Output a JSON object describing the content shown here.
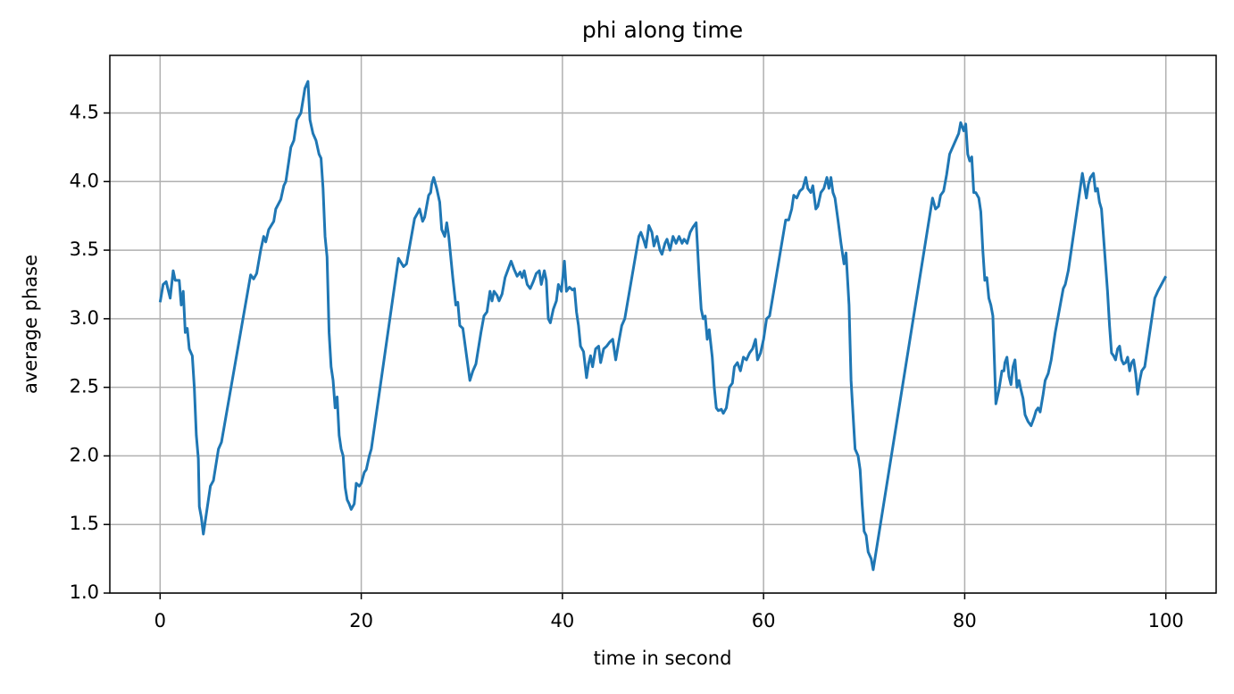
{
  "chart_data": {
    "type": "line",
    "title": "phi along time",
    "xlabel": "time in second",
    "ylabel": "average phase",
    "xlim": [
      -5,
      105
    ],
    "ylim": [
      1.0,
      4.92
    ],
    "xticks": [
      0,
      20,
      40,
      60,
      80,
      100
    ],
    "yticks": [
      {
        "value": 1.0,
        "label": "1.0"
      },
      1.5,
      {
        "value": 2.0,
        "label": "2.0"
      },
      2.5,
      {
        "value": 3.0,
        "label": "3.0"
      },
      3.5,
      {
        "value": 4.0,
        "label": "4.0"
      },
      4.5
    ],
    "grid": true,
    "x": [
      0,
      0.3,
      0.6,
      1.0,
      1.3,
      1.5,
      1.9,
      2.1,
      2.3,
      2.5,
      2.7,
      2.9,
      3.2,
      3.4,
      3.6,
      3.8,
      3.9,
      4.1,
      4.3,
      4.6,
      5.0,
      5.3,
      5.8,
      6.1,
      9.0,
      9.3,
      9.6,
      10.0,
      10.3,
      10.5,
      10.8,
      11.3,
      11.5,
      12.0,
      12.3,
      12.5,
      13.0,
      13.3,
      13.6,
      14.0,
      14.4,
      14.7,
      14.9,
      15.2,
      15.5,
      15.8,
      16.0,
      16.2,
      16.4,
      16.6,
      16.8,
      17.0,
      17.2,
      17.4,
      17.6,
      17.8,
      18.0,
      18.2,
      18.4,
      18.6,
      18.8,
      19.0,
      19.3,
      19.5,
      19.8,
      20.0,
      20.3,
      20.5,
      20.8,
      21.0,
      23.7,
      24.2,
      24.5,
      25.3,
      25.6,
      25.8,
      26.1,
      26.3,
      26.5,
      26.7,
      26.9,
      27.0,
      27.2,
      27.5,
      27.8,
      28.0,
      28.3,
      28.5,
      28.7,
      29.1,
      29.4,
      29.6,
      29.8,
      30.1,
      30.8,
      31.1,
      31.4,
      31.9,
      32.2,
      32.5,
      32.8,
      33.0,
      33.2,
      33.5,
      33.7,
      34.0,
      34.3,
      34.6,
      34.9,
      35.2,
      35.5,
      35.8,
      36.0,
      36.2,
      36.5,
      36.8,
      37.1,
      37.4,
      37.7,
      37.9,
      38.2,
      38.4,
      38.6,
      38.8,
      39.1,
      39.4,
      39.6,
      39.9,
      40.2,
      40.4,
      40.7,
      41.0,
      41.2,
      41.4,
      41.6,
      41.8,
      42.1,
      42.4,
      42.6,
      42.8,
      43.0,
      43.3,
      43.6,
      43.8,
      44.1,
      44.4,
      44.7,
      45.0,
      45.3,
      45.6,
      45.9,
      46.2,
      47.6,
      47.8,
      48.1,
      48.3,
      48.6,
      48.9,
      49.1,
      49.4,
      49.7,
      49.9,
      50.2,
      50.4,
      50.7,
      51.0,
      51.3,
      51.6,
      51.9,
      52.1,
      52.4,
      52.7,
      53.0,
      53.3,
      53.6,
      53.8,
      54.0,
      54.2,
      54.4,
      54.6,
      54.9,
      55.1,
      55.3,
      55.5,
      55.8,
      56.0,
      56.3,
      56.6,
      56.9,
      57.1,
      57.4,
      57.7,
      58.0,
      58.3,
      58.6,
      58.9,
      59.2,
      59.4,
      59.7,
      60.0,
      60.3,
      60.6,
      62.2,
      62.5,
      62.8,
      63.0,
      63.3,
      63.6,
      63.9,
      64.2,
      64.4,
      64.7,
      64.9,
      65.2,
      65.4,
      65.7,
      66.0,
      66.3,
      66.5,
      66.7,
      66.9,
      67.1,
      67.4,
      67.7,
      68.0,
      68.2,
      68.5,
      68.7,
      68.9,
      69.1,
      69.4,
      69.6,
      69.8,
      70.0,
      70.2,
      70.4,
      70.7,
      70.9,
      76.8,
      77.1,
      77.4,
      77.6,
      77.9,
      78.2,
      78.5,
      79.4,
      79.6,
      79.9,
      80.1,
      80.3,
      80.5,
      80.7,
      80.9,
      81.1,
      81.4,
      81.6,
      81.8,
      82.0,
      82.2,
      82.4,
      82.6,
      82.8,
      83.1,
      83.4,
      83.7,
      83.9,
      84.0,
      84.2,
      84.4,
      84.6,
      84.8,
      85.0,
      85.2,
      85.4,
      85.6,
      85.8,
      86.0,
      86.3,
      86.6,
      86.9,
      87.1,
      87.3,
      87.5,
      87.8,
      88.0,
      88.3,
      88.6,
      89.0,
      89.5,
      89.8,
      90.0,
      90.3,
      91.7,
      91.9,
      92.1,
      92.3,
      92.5,
      92.8,
      93.0,
      93.2,
      93.4,
      93.6,
      93.8,
      94.0,
      94.2,
      94.4,
      94.6,
      94.8,
      95.0,
      95.2,
      95.4,
      95.6,
      95.8,
      96.0,
      96.2,
      96.4,
      96.6,
      96.8,
      97.0,
      97.2,
      97.4,
      97.6,
      97.9,
      98.3,
      98.9,
      99.2,
      100
    ],
    "series": [
      {
        "color": "#1f77b4",
        "values": [
          3.12,
          3.25,
          3.27,
          3.15,
          3.35,
          3.28,
          3.28,
          3.1,
          3.2,
          2.9,
          2.93,
          2.78,
          2.73,
          2.5,
          2.15,
          1.98,
          1.63,
          1.55,
          1.43,
          1.58,
          1.78,
          1.82,
          2.05,
          2.1,
          3.32,
          3.29,
          3.33,
          3.5,
          3.6,
          3.56,
          3.65,
          3.71,
          3.8,
          3.87,
          3.97,
          4.0,
          4.25,
          4.3,
          4.45,
          4.5,
          4.68,
          4.73,
          4.45,
          4.35,
          4.3,
          4.2,
          4.17,
          3.95,
          3.6,
          3.45,
          2.9,
          2.65,
          2.55,
          2.35,
          2.43,
          2.15,
          2.05,
          2.0,
          1.77,
          1.68,
          1.65,
          1.61,
          1.65,
          1.8,
          1.78,
          1.8,
          1.88,
          1.9,
          2.0,
          2.05,
          3.44,
          3.38,
          3.4,
          3.73,
          3.77,
          3.8,
          3.71,
          3.74,
          3.82,
          3.9,
          3.92,
          3.98,
          4.03,
          3.95,
          3.85,
          3.65,
          3.6,
          3.7,
          3.6,
          3.3,
          3.1,
          3.12,
          2.95,
          2.93,
          2.55,
          2.62,
          2.67,
          2.9,
          3.02,
          3.05,
          3.2,
          3.13,
          3.2,
          3.17,
          3.13,
          3.18,
          3.3,
          3.36,
          3.42,
          3.36,
          3.31,
          3.34,
          3.3,
          3.35,
          3.25,
          3.22,
          3.27,
          3.33,
          3.35,
          3.25,
          3.35,
          3.28,
          3.0,
          2.97,
          3.07,
          3.13,
          3.25,
          3.2,
          3.42,
          3.2,
          3.23,
          3.21,
          3.22,
          3.05,
          2.95,
          2.8,
          2.76,
          2.57,
          2.67,
          2.73,
          2.65,
          2.78,
          2.8,
          2.68,
          2.78,
          2.8,
          2.83,
          2.85,
          2.7,
          2.83,
          2.95,
          3.0,
          3.6,
          3.63,
          3.57,
          3.52,
          3.68,
          3.63,
          3.53,
          3.6,
          3.5,
          3.47,
          3.55,
          3.58,
          3.5,
          3.6,
          3.55,
          3.6,
          3.55,
          3.58,
          3.55,
          3.63,
          3.67,
          3.7,
          3.3,
          3.07,
          3.0,
          3.02,
          2.85,
          2.92,
          2.72,
          2.5,
          2.35,
          2.33,
          2.34,
          2.31,
          2.35,
          2.5,
          2.53,
          2.65,
          2.68,
          2.62,
          2.72,
          2.7,
          2.75,
          2.78,
          2.85,
          2.7,
          2.75,
          2.85,
          3.0,
          3.02,
          3.72,
          3.72,
          3.8,
          3.9,
          3.88,
          3.93,
          3.95,
          4.03,
          3.95,
          3.92,
          3.97,
          3.8,
          3.82,
          3.92,
          3.95,
          4.03,
          3.95,
          4.03,
          3.92,
          3.88,
          3.72,
          3.55,
          3.4,
          3.48,
          3.1,
          2.55,
          2.3,
          2.05,
          2.0,
          1.9,
          1.65,
          1.45,
          1.42,
          1.3,
          1.25,
          1.17,
          3.88,
          3.8,
          3.82,
          3.9,
          3.93,
          4.05,
          4.2,
          4.35,
          4.43,
          4.37,
          4.42,
          4.2,
          4.15,
          4.18,
          3.92,
          3.92,
          3.88,
          3.78,
          3.5,
          3.28,
          3.3,
          3.15,
          3.1,
          3.02,
          2.38,
          2.48,
          2.62,
          2.62,
          2.68,
          2.72,
          2.58,
          2.52,
          2.65,
          2.7,
          2.5,
          2.55,
          2.48,
          2.42,
          2.3,
          2.25,
          2.22,
          2.28,
          2.33,
          2.35,
          2.32,
          2.45,
          2.55,
          2.6,
          2.7,
          2.9,
          3.1,
          3.22,
          3.25,
          3.35,
          4.06,
          3.97,
          3.88,
          3.98,
          4.03,
          4.06,
          3.93,
          3.95,
          3.85,
          3.8,
          3.6,
          3.4,
          3.2,
          2.95,
          2.75,
          2.73,
          2.7,
          2.78,
          2.8,
          2.7,
          2.67,
          2.68,
          2.72,
          2.62,
          2.68,
          2.7,
          2.6,
          2.45,
          2.55,
          2.62,
          2.65,
          2.85,
          3.15,
          3.2,
          3.31
        ]
      }
    ]
  }
}
